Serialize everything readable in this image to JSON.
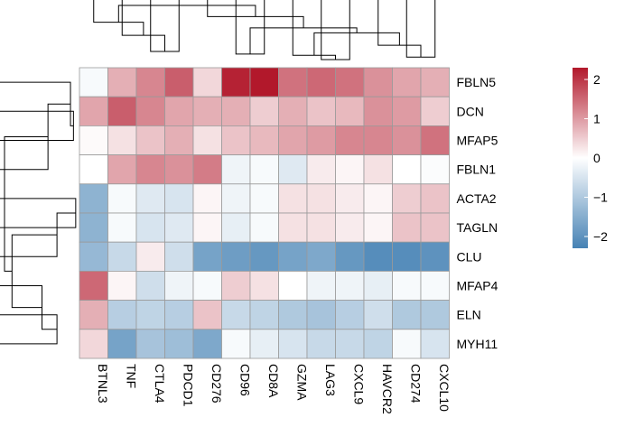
{
  "chart_data": {
    "type": "heatmap",
    "rows": [
      "FBLN5",
      "DCN",
      "MFAP5",
      "FBLN1",
      "ACTA2",
      "TAGLN",
      "CLU",
      "MFAP4",
      "ELN",
      "MYH11"
    ],
    "columns": [
      "BTNL3",
      "TNF",
      "CTLA4",
      "PDCD1",
      "CD276",
      "CD96",
      "CD8A",
      "GZMA",
      "LAG3",
      "CXCL9",
      "HAVCR2",
      "CD274",
      "CXCL10"
    ],
    "values": [
      [
        -0.1,
        0.8,
        1.2,
        1.6,
        0.4,
        2.2,
        2.3,
        1.4,
        1.5,
        1.4,
        1.1,
        0.9,
        0.8
      ],
      [
        0.9,
        1.6,
        1.2,
        0.9,
        0.8,
        0.8,
        0.5,
        0.8,
        0.6,
        0.7,
        1.1,
        1.0,
        0.5
      ],
      [
        0.05,
        0.3,
        0.6,
        0.8,
        0.3,
        0.6,
        0.7,
        0.9,
        1.0,
        1.2,
        1.2,
        1.1,
        1.4
      ],
      [
        0.0,
        0.9,
        1.2,
        1.1,
        1.3,
        -0.2,
        -0.1,
        -0.4,
        0.2,
        0.1,
        0.3,
        0.0,
        -0.05
      ],
      [
        -1.4,
        -0.1,
        -0.4,
        -0.5,
        0.1,
        -0.2,
        -0.1,
        0.3,
        0.3,
        0.2,
        0.1,
        0.5,
        0.6
      ],
      [
        -1.4,
        -0.1,
        -0.5,
        -0.4,
        0.1,
        -0.3,
        -0.1,
        0.3,
        0.3,
        0.2,
        0.1,
        0.6,
        0.6
      ],
      [
        -1.3,
        -0.7,
        0.2,
        -0.6,
        -1.7,
        -1.8,
        -1.9,
        -1.7,
        -1.6,
        -1.9,
        -2.1,
        -2.1,
        -2.0
      ],
      [
        1.5,
        0.1,
        -0.6,
        -0.2,
        -0.1,
        0.5,
        0.3,
        0.0,
        -0.2,
        -0.2,
        -0.3,
        -0.1,
        -0.1
      ],
      [
        0.8,
        -0.9,
        -0.8,
        -0.9,
        0.6,
        -0.7,
        -0.8,
        -1.0,
        -1.1,
        -0.9,
        -0.6,
        -1.0,
        -1.0
      ],
      [
        0.4,
        -1.7,
        -1.1,
        -1.2,
        -1.6,
        -0.1,
        -0.3,
        -0.5,
        -0.7,
        -0.7,
        -0.8,
        -0.1,
        -0.5
      ]
    ],
    "colorbar": {
      "range": [
        -2.3,
        2.3
      ],
      "ticks": [
        2,
        1,
        0,
        -1,
        -2
      ],
      "tick_labels": [
        "2",
        "1",
        "0",
        "−1",
        "−2"
      ],
      "low_color": "#4682B4",
      "mid_color": "#FFFFFF",
      "high_color": "#B2182B"
    },
    "title": "",
    "xlabel": "",
    "ylabel": "",
    "legend_position": "right",
    "grid": true
  }
}
